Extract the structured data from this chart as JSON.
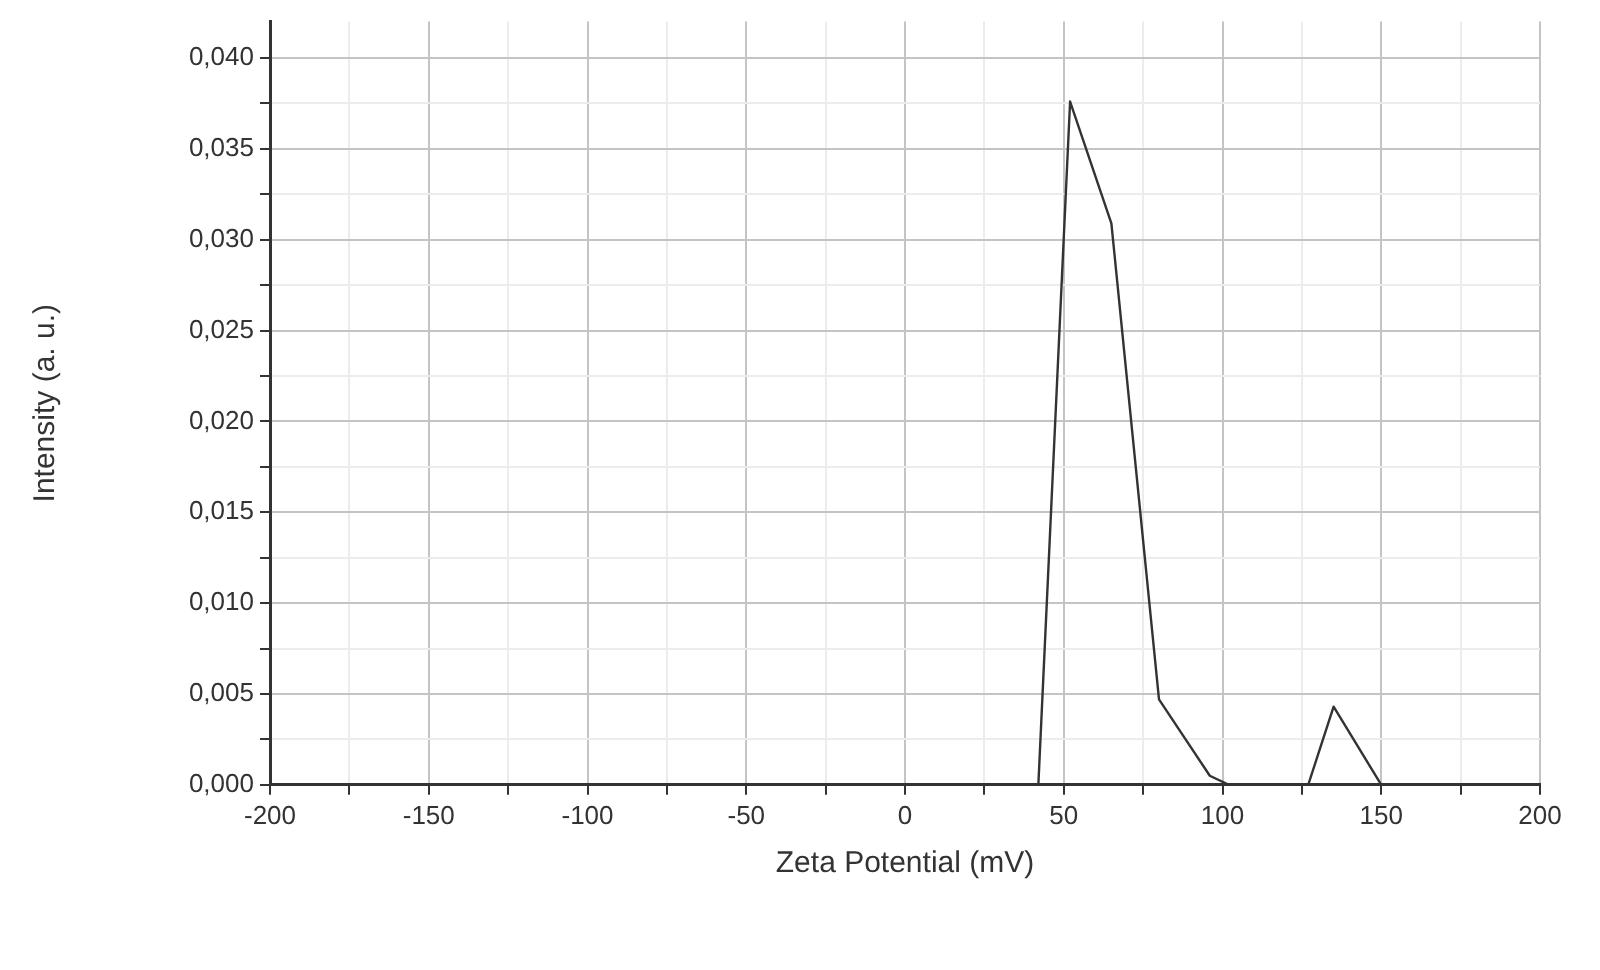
{
  "chart_data": {
    "type": "line",
    "xlabel": "Zeta Potential (mV)",
    "ylabel": "Intensity (a. u.)",
    "series": [
      {
        "color": "#333333",
        "x": [
          42,
          52,
          65,
          80,
          96,
          102,
          127,
          135,
          150
        ],
        "values": [
          0,
          0.0376,
          0.0309,
          0.0047,
          0.0005,
          0,
          0,
          0.0043,
          0
        ]
      }
    ],
    "xlim": [
      -200,
      200
    ],
    "xticks": [
      -200,
      {
        "value": -175,
        "label": null
      },
      -150,
      {
        "value": -125,
        "label": null
      },
      -100,
      {
        "value": -75,
        "label": null
      },
      -50,
      {
        "value": -25,
        "label": null
      },
      0,
      {
        "value": 25,
        "label": null
      },
      50,
      {
        "value": 75,
        "label": null
      },
      100,
      {
        "value": 125,
        "label": null
      },
      150,
      {
        "value": 175,
        "label": null
      },
      200
    ],
    "ylim": [
      0,
      0.042
    ],
    "yticks": [
      {
        "value": 0,
        "label": "0,000"
      },
      {
        "value": 0.0025,
        "label": null
      },
      {
        "value": 0.005,
        "label": "0,005"
      },
      {
        "value": 0.0075,
        "label": null
      },
      {
        "value": 0.01,
        "label": "0,010"
      },
      {
        "value": 0.0125,
        "label": null
      },
      {
        "value": 0.015,
        "label": "0,015"
      },
      {
        "value": 0.0175,
        "label": null
      },
      {
        "value": 0.02,
        "label": "0,020"
      },
      {
        "value": 0.0225,
        "label": null
      },
      {
        "value": 0.025,
        "label": "0,025"
      },
      {
        "value": 0.0275,
        "label": null
      },
      {
        "value": 0.03,
        "label": "0,030"
      },
      {
        "value": 0.0325,
        "label": null
      },
      {
        "value": 0.035,
        "label": "0,035"
      },
      {
        "value": 0.0375,
        "label": null
      },
      {
        "value": 0.04,
        "label": "0,040"
      }
    ],
    "grid": true,
    "marker": "none",
    "line_style": "solid"
  }
}
